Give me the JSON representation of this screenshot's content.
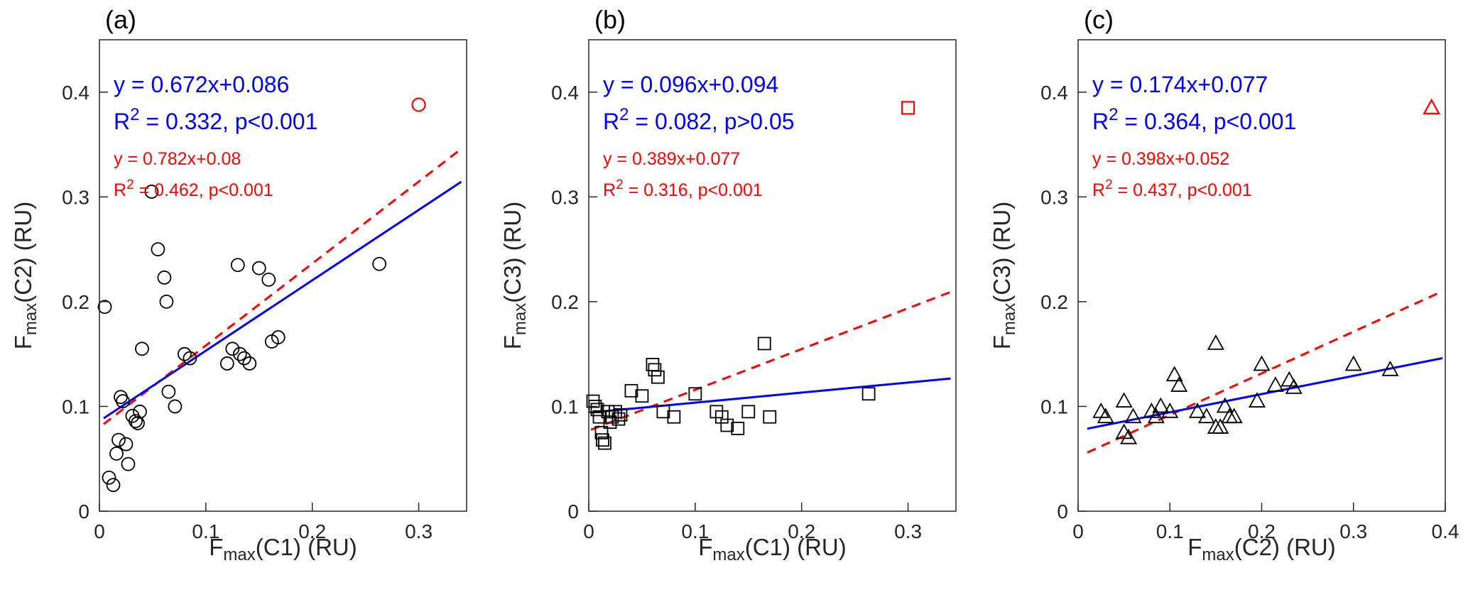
{
  "colors": {
    "blue": "#0000ff",
    "red": "#ff0000",
    "marker": "#000000",
    "axis": "#262626",
    "panel_label": "#000000"
  },
  "chart_data": [
    {
      "type": "scatter",
      "panel_label": "(a)",
      "marker": "circle",
      "xlabel": {
        "pre": "F",
        "sub": "max",
        "post": "(C1) (RU)"
      },
      "ylabel": {
        "pre": "F",
        "sub": "max",
        "post": "(C2) (RU)"
      },
      "xlim": [
        0,
        0.345
      ],
      "ylim": [
        0,
        0.45
      ],
      "xticks": [
        0,
        0.1,
        0.2,
        0.3
      ],
      "yticks": [
        0,
        0.1,
        0.2,
        0.3,
        0.4
      ],
      "grid": false,
      "blue_fit": {
        "eq": "y = 0.672x+0.086",
        "r2": "0.332",
        "p": "p<0.001",
        "slope": 0.672,
        "intercept": 0.086,
        "x_range": [
          0.004,
          0.34
        ]
      },
      "red_fit": {
        "eq": "y = 0.782x+0.08",
        "r2": "0.462",
        "p": "p<0.001",
        "slope": 0.782,
        "intercept": 0.08,
        "x_range": [
          0.004,
          0.34
        ]
      },
      "outlier": [
        0.3,
        0.388
      ],
      "points": [
        [
          0.005,
          0.195
        ],
        [
          0.009,
          0.032
        ],
        [
          0.013,
          0.025
        ],
        [
          0.016,
          0.055
        ],
        [
          0.018,
          0.068
        ],
        [
          0.02,
          0.109
        ],
        [
          0.022,
          0.105
        ],
        [
          0.025,
          0.064
        ],
        [
          0.027,
          0.045
        ],
        [
          0.031,
          0.091
        ],
        [
          0.034,
          0.086
        ],
        [
          0.036,
          0.084
        ],
        [
          0.038,
          0.095
        ],
        [
          0.04,
          0.155
        ],
        [
          0.049,
          0.305
        ],
        [
          0.055,
          0.25
        ],
        [
          0.061,
          0.223
        ],
        [
          0.063,
          0.2
        ],
        [
          0.065,
          0.114
        ],
        [
          0.071,
          0.1
        ],
        [
          0.08,
          0.15
        ],
        [
          0.085,
          0.146
        ],
        [
          0.12,
          0.141
        ],
        [
          0.125,
          0.155
        ],
        [
          0.13,
          0.235
        ],
        [
          0.132,
          0.15
        ],
        [
          0.136,
          0.146
        ],
        [
          0.141,
          0.141
        ],
        [
          0.15,
          0.232
        ],
        [
          0.159,
          0.221
        ],
        [
          0.162,
          0.162
        ],
        [
          0.168,
          0.166
        ],
        [
          0.263,
          0.236
        ]
      ]
    },
    {
      "type": "scatter",
      "panel_label": "(b)",
      "marker": "square",
      "xlabel": {
        "pre": "F",
        "sub": "max",
        "post": "(C1) (RU)"
      },
      "ylabel": {
        "pre": "F",
        "sub": "max",
        "post": "(C3) (RU)"
      },
      "xlim": [
        0,
        0.345
      ],
      "ylim": [
        0,
        0.45
      ],
      "xticks": [
        0,
        0.1,
        0.2,
        0.3
      ],
      "yticks": [
        0,
        0.1,
        0.2,
        0.3,
        0.4
      ],
      "grid": false,
      "blue_fit": {
        "eq": "y = 0.096x+0.094",
        "r2": "0.082",
        "p": "p>0.05",
        "slope": 0.096,
        "intercept": 0.094,
        "x_range": [
          0.002,
          0.34
        ]
      },
      "red_fit": {
        "eq": "y = 0.389x+0.077",
        "r2": "0.316",
        "p": "p<0.001",
        "slope": 0.389,
        "intercept": 0.077,
        "x_range": [
          0.002,
          0.34
        ]
      },
      "outlier": [
        0.3,
        0.385
      ],
      "points": [
        [
          0.004,
          0.105
        ],
        [
          0.006,
          0.1
        ],
        [
          0.008,
          0.097
        ],
        [
          0.01,
          0.09
        ],
        [
          0.012,
          0.075
        ],
        [
          0.013,
          0.068
        ],
        [
          0.015,
          0.065
        ],
        [
          0.018,
          0.095
        ],
        [
          0.02,
          0.085
        ],
        [
          0.022,
          0.09
        ],
        [
          0.025,
          0.095
        ],
        [
          0.028,
          0.088
        ],
        [
          0.03,
          0.092
        ],
        [
          0.04,
          0.115
        ],
        [
          0.05,
          0.11
        ],
        [
          0.06,
          0.14
        ],
        [
          0.062,
          0.135
        ],
        [
          0.065,
          0.128
        ],
        [
          0.07,
          0.095
        ],
        [
          0.08,
          0.09
        ],
        [
          0.1,
          0.112
        ],
        [
          0.12,
          0.095
        ],
        [
          0.125,
          0.09
        ],
        [
          0.13,
          0.082
        ],
        [
          0.14,
          0.079
        ],
        [
          0.15,
          0.095
        ],
        [
          0.165,
          0.16
        ],
        [
          0.17,
          0.09
        ],
        [
          0.263,
          0.112
        ]
      ]
    },
    {
      "type": "scatter",
      "panel_label": "(c)",
      "marker": "triangle",
      "xlabel": {
        "pre": "F",
        "sub": "max",
        "post": "(C2) (RU)"
      },
      "ylabel": {
        "pre": "F",
        "sub": "max",
        "post": "(C3) (RU)"
      },
      "xlim": [
        0,
        0.4
      ],
      "ylim": [
        0,
        0.45
      ],
      "xticks": [
        0,
        0.1,
        0.2,
        0.3,
        0.4
      ],
      "yticks": [
        0,
        0.1,
        0.2,
        0.3,
        0.4
      ],
      "grid": false,
      "blue_fit": {
        "eq": "y = 0.174x+0.077",
        "r2": "0.364",
        "p": "p<0.001",
        "slope": 0.174,
        "intercept": 0.077,
        "x_range": [
          0.01,
          0.397
        ]
      },
      "red_fit": {
        "eq": "y = 0.398x+0.052",
        "r2": "0.437",
        "p": "p<0.001",
        "slope": 0.398,
        "intercept": 0.052,
        "x_range": [
          0.01,
          0.397
        ]
      },
      "outlier": [
        0.385,
        0.385
      ],
      "points": [
        [
          0.025,
          0.095
        ],
        [
          0.03,
          0.09
        ],
        [
          0.05,
          0.105
        ],
        [
          0.05,
          0.075
        ],
        [
          0.055,
          0.07
        ],
        [
          0.06,
          0.09
        ],
        [
          0.08,
          0.095
        ],
        [
          0.085,
          0.09
        ],
        [
          0.09,
          0.1
        ],
        [
          0.1,
          0.095
        ],
        [
          0.105,
          0.13
        ],
        [
          0.11,
          0.12
        ],
        [
          0.13,
          0.095
        ],
        [
          0.14,
          0.09
        ],
        [
          0.15,
          0.16
        ],
        [
          0.15,
          0.08
        ],
        [
          0.155,
          0.08
        ],
        [
          0.16,
          0.1
        ],
        [
          0.165,
          0.09
        ],
        [
          0.17,
          0.09
        ],
        [
          0.195,
          0.105
        ],
        [
          0.2,
          0.14
        ],
        [
          0.215,
          0.12
        ],
        [
          0.23,
          0.125
        ],
        [
          0.235,
          0.118
        ],
        [
          0.3,
          0.14
        ],
        [
          0.34,
          0.135
        ]
      ]
    }
  ]
}
